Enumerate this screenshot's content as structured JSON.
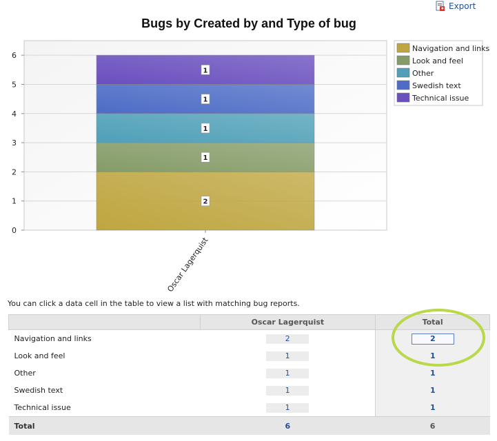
{
  "export_label": "Export",
  "info_text": "You can click a data cell in the table to view a list with matching bug reports.",
  "chart_data": {
    "type": "bar",
    "stacked": true,
    "title": "Bugs by Created by and Type of bug",
    "categories": [
      "Oscar Lagerquist"
    ],
    "ylim": [
      0,
      6.5
    ],
    "yticks": [
      0,
      1,
      2,
      3,
      4,
      5,
      6
    ],
    "legend_position": "right",
    "series": [
      {
        "name": "Navigation and links",
        "values": [
          2
        ],
        "color": "#bfa640"
      },
      {
        "name": "Look and feel",
        "values": [
          1
        ],
        "color": "#869c68"
      },
      {
        "name": "Other",
        "values": [
          1
        ],
        "color": "#4fa0b8"
      },
      {
        "name": "Swedish text",
        "values": [
          1
        ],
        "color": "#4c6cc6"
      },
      {
        "name": "Technical issue",
        "values": [
          1
        ],
        "color": "#6a4fbf"
      }
    ]
  },
  "table": {
    "headers": [
      "",
      "Oscar Lagerquist",
      "Total"
    ],
    "rows": [
      {
        "label": "Navigation and links",
        "value": "2",
        "total": "2"
      },
      {
        "label": "Look and feel",
        "value": "1",
        "total": "1"
      },
      {
        "label": "Other",
        "value": "1",
        "total": "1"
      },
      {
        "label": "Swedish text",
        "value": "1",
        "total": "1"
      },
      {
        "label": "Technical issue",
        "value": "1",
        "total": "1"
      }
    ],
    "total_row": {
      "label": "Total",
      "value": "6",
      "total": "6"
    }
  },
  "colors": {
    "link": "#1f4f99",
    "highlight_ring": "#b9d84a"
  }
}
